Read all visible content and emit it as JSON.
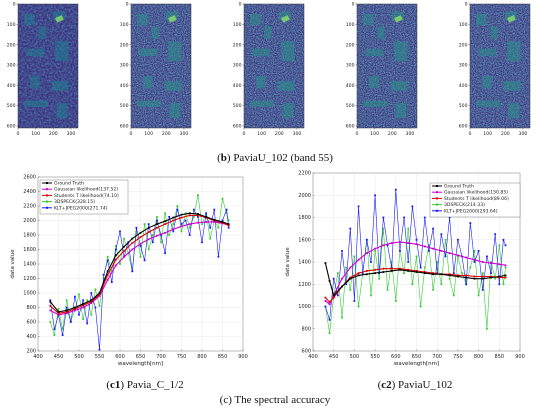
{
  "top_row": {
    "y_ticks": [
      "0",
      "100",
      "200",
      "300",
      "400",
      "500",
      "600"
    ],
    "x_ticks": [
      "0",
      "100",
      "200",
      "300"
    ],
    "panel_count": 5
  },
  "caption_b": {
    "label": "b",
    "text": "PaviaU_102 (band 55)"
  },
  "caption_c1": {
    "label": "c1",
    "text": "Pavia_C_1/2"
  },
  "caption_c2": {
    "label": "c2",
    "text": "PaviaU_102"
  },
  "caption_c": {
    "text": "(c) The spectral accuracy"
  },
  "colors": {
    "ground_truth": "#000000",
    "gaussian": "#cc00cc",
    "students_t": "#dd0000",
    "spe3d": "#33cc33",
    "klt": "#1a1aff"
  },
  "chart_data": [
    {
      "type": "line",
      "xlabel": "wavelength[nm]",
      "ylabel": "data value",
      "xlim": [
        400,
        900
      ],
      "ylim": [
        200,
        2600
      ],
      "x_ticks": [
        400,
        450,
        500,
        550,
        600,
        650,
        700,
        750,
        800,
        850,
        900
      ],
      "y_ticks": [
        200,
        400,
        600,
        800,
        1000,
        1200,
        1400,
        1600,
        1800,
        2000,
        2200,
        2400,
        2600
      ],
      "legend_position": "top-left",
      "series": [
        {
          "name": "Ground Truth",
          "key": "ground_truth",
          "x": [
            430,
            450,
            470,
            490,
            510,
            530,
            550,
            570,
            590,
            610,
            630,
            650,
            670,
            690,
            710,
            730,
            750,
            770,
            790,
            810,
            830,
            850,
            865
          ],
          "y": [
            880,
            740,
            760,
            800,
            850,
            900,
            1000,
            1300,
            1520,
            1640,
            1750,
            1830,
            1900,
            1950,
            1990,
            2040,
            2080,
            2100,
            2090,
            2050,
            2010,
            1980,
            1950
          ]
        },
        {
          "name": "Gaussian likelihood(137.52)",
          "key": "gaussian",
          "x": [
            430,
            450,
            470,
            490,
            510,
            530,
            550,
            570,
            590,
            610,
            630,
            650,
            670,
            690,
            710,
            730,
            750,
            770,
            790,
            810,
            830,
            850,
            865
          ],
          "y": [
            760,
            700,
            720,
            760,
            800,
            860,
            960,
            1180,
            1380,
            1500,
            1600,
            1680,
            1740,
            1790,
            1830,
            1880,
            1920,
            1950,
            1970,
            1980,
            1980,
            1960,
            1940
          ]
        },
        {
          "name": "Students T likelihood(74.10)",
          "key": "students_t",
          "x": [
            430,
            450,
            470,
            490,
            510,
            530,
            550,
            570,
            590,
            610,
            630,
            650,
            670,
            690,
            710,
            730,
            750,
            770,
            790,
            810,
            830,
            850,
            865
          ],
          "y": [
            820,
            720,
            740,
            780,
            830,
            880,
            980,
            1250,
            1460,
            1580,
            1690,
            1770,
            1840,
            1900,
            1950,
            2000,
            2040,
            2070,
            2070,
            2040,
            2000,
            1970,
            1930
          ]
        },
        {
          "name": "3DSPECK(328.15)",
          "key": "spe3d",
          "x": [
            430,
            440,
            450,
            460,
            470,
            480,
            490,
            500,
            510,
            520,
            530,
            540,
            550,
            560,
            570,
            580,
            590,
            600,
            610,
            620,
            630,
            640,
            650,
            660,
            670,
            680,
            690,
            700,
            710,
            720,
            730,
            740,
            750,
            760,
            770,
            780,
            790,
            800,
            810,
            820,
            830,
            840,
            850,
            860,
            865
          ],
          "y": [
            600,
            420,
            780,
            500,
            900,
            620,
            760,
            980,
            640,
            900,
            700,
            1050,
            820,
            1200,
            1500,
            1300,
            1650,
            1400,
            1750,
            1550,
            1300,
            1850,
            1500,
            1950,
            1600,
            1800,
            2050,
            1700,
            2100,
            1800,
            1950,
            2200,
            1850,
            2100,
            1900,
            2050,
            2350,
            1950,
            2100,
            1750,
            2000,
            1900,
            2300,
            2100,
            2000
          ]
        },
        {
          "name": "KLT+JPEG2000(271.74)",
          "key": "klt",
          "x": [
            430,
            440,
            450,
            460,
            470,
            480,
            490,
            500,
            510,
            520,
            530,
            540,
            550,
            560,
            570,
            580,
            590,
            600,
            610,
            620,
            630,
            640,
            650,
            660,
            670,
            680,
            690,
            700,
            710,
            720,
            730,
            740,
            750,
            760,
            770,
            780,
            790,
            800,
            810,
            820,
            830,
            840,
            850,
            860,
            865
          ],
          "y": [
            900,
            500,
            700,
            420,
            800,
            600,
            950,
            700,
            900,
            580,
            1000,
            800,
            220,
            1250,
            1450,
            1150,
            1600,
            1850,
            1500,
            1700,
            1300,
            1900,
            1650,
            1450,
            1950,
            1700,
            2000,
            1800,
            1550,
            2050,
            1850,
            2150,
            1950,
            2000,
            1800,
            2150,
            2050,
            1700,
            2100,
            1900,
            2150,
            1500,
            2000,
            2150,
            1900
          ]
        }
      ]
    },
    {
      "type": "line",
      "xlabel": "wavelength[nm]",
      "ylabel": "data value",
      "xlim": [
        400,
        900
      ],
      "ylim": [
        600,
        2200
      ],
      "x_ticks": [
        400,
        450,
        500,
        550,
        600,
        650,
        700,
        750,
        800,
        850,
        900
      ],
      "y_ticks": [
        600,
        800,
        1000,
        1200,
        1400,
        1600,
        1800,
        2000,
        2200
      ],
      "legend_position": "top-right",
      "series": [
        {
          "name": "Ground Truth",
          "key": "ground_truth",
          "x": [
            430,
            440,
            450,
            470,
            490,
            510,
            530,
            550,
            570,
            590,
            610,
            630,
            650,
            670,
            690,
            710,
            730,
            750,
            770,
            790,
            810,
            830,
            850,
            865
          ],
          "y": [
            1390,
            1230,
            1100,
            1180,
            1250,
            1280,
            1290,
            1300,
            1310,
            1320,
            1330,
            1320,
            1310,
            1300,
            1290,
            1290,
            1280,
            1270,
            1260,
            1250,
            1250,
            1260,
            1270,
            1280
          ]
        },
        {
          "name": "Gaussian likelihood(150.85)",
          "key": "gaussian",
          "x": [
            430,
            440,
            450,
            470,
            490,
            510,
            530,
            550,
            570,
            590,
            610,
            630,
            650,
            670,
            690,
            710,
            730,
            750,
            770,
            790,
            810,
            830,
            850,
            865
          ],
          "y": [
            1050,
            1020,
            1100,
            1250,
            1350,
            1420,
            1480,
            1520,
            1550,
            1570,
            1580,
            1570,
            1560,
            1540,
            1520,
            1500,
            1480,
            1460,
            1440,
            1420,
            1400,
            1390,
            1380,
            1370
          ]
        },
        {
          "name": "Students T likelihood(89.06)",
          "key": "students_t",
          "x": [
            430,
            440,
            450,
            470,
            490,
            510,
            530,
            550,
            570,
            590,
            610,
            630,
            650,
            670,
            690,
            710,
            730,
            750,
            770,
            790,
            810,
            830,
            850,
            865
          ],
          "y": [
            1080,
            1040,
            1080,
            1180,
            1260,
            1300,
            1320,
            1330,
            1340,
            1340,
            1340,
            1330,
            1320,
            1310,
            1300,
            1290,
            1290,
            1280,
            1280,
            1270,
            1270,
            1270,
            1260,
            1260
          ]
        },
        {
          "name": "3DSPECK(214.33)",
          "key": "spe3d",
          "x": [
            430,
            440,
            450,
            460,
            470,
            480,
            490,
            500,
            510,
            520,
            530,
            540,
            550,
            560,
            570,
            580,
            590,
            600,
            610,
            620,
            630,
            640,
            650,
            660,
            670,
            680,
            690,
            700,
            710,
            720,
            730,
            740,
            750,
            760,
            770,
            780,
            790,
            800,
            810,
            820,
            830,
            840,
            850,
            860,
            865
          ],
          "y": [
            1000,
            760,
            1100,
            1300,
            900,
            1350,
            1150,
            1450,
            1000,
            1300,
            1600,
            1100,
            1500,
            1250,
            1700,
            1150,
            1400,
            1050,
            1500,
            1300,
            1700,
            1200,
            1450,
            1000,
            1350,
            1550,
            1150,
            1400,
            1200,
            1600,
            1250,
            1100,
            1450,
            1300,
            1200,
            1350,
            1500,
            1100,
            1300,
            800,
            1400,
            1250,
            1550,
            1200,
            1350
          ]
        },
        {
          "name": "KLT+JPEG2000(293.64)",
          "key": "klt",
          "x": [
            430,
            440,
            450,
            460,
            470,
            480,
            490,
            500,
            510,
            520,
            530,
            540,
            550,
            560,
            570,
            580,
            590,
            600,
            610,
            620,
            630,
            640,
            650,
            660,
            670,
            680,
            690,
            700,
            710,
            720,
            730,
            740,
            750,
            760,
            770,
            780,
            790,
            800,
            810,
            820,
            830,
            840,
            850,
            860,
            865
          ],
          "y": [
            1000,
            880,
            1250,
            1100,
            1500,
            1200,
            1700,
            1050,
            1900,
            1300,
            1600,
            1400,
            2000,
            1300,
            1800,
            1550,
            1350,
            2050,
            1500,
            1800,
            1400,
            1900,
            1600,
            1350,
            1800,
            1500,
            1700,
            1300,
            1650,
            1450,
            1800,
            1300,
            1600,
            1450,
            1200,
            1750,
            1400,
            1500,
            1150,
            1450,
            1300,
            1650,
            1200,
            1600,
            1550
          ]
        }
      ]
    }
  ]
}
